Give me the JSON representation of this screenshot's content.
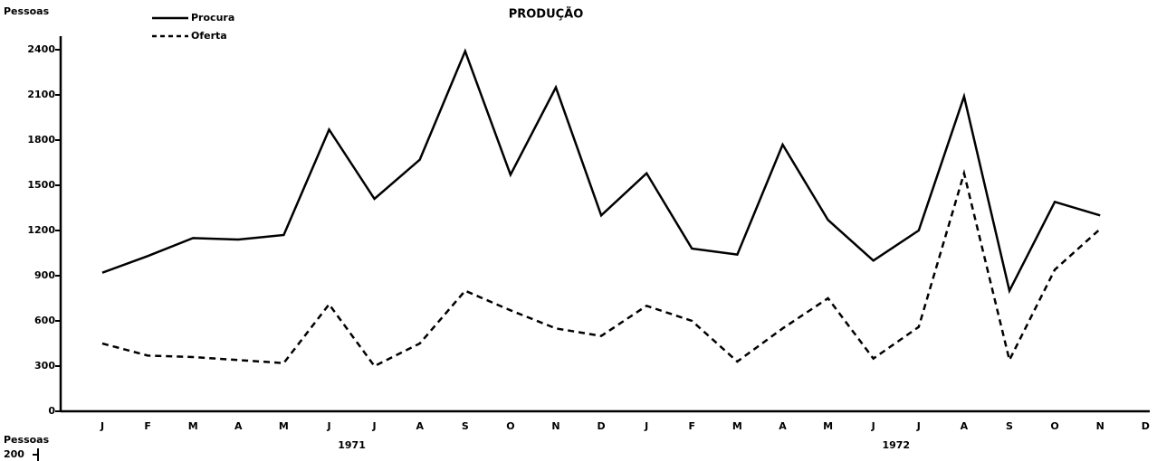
{
  "chart_data": {
    "type": "line",
    "title": "PRODUÇÃO",
    "y_label": "Pessoas",
    "categories": [
      "J",
      "F",
      "M",
      "A",
      "M",
      "J",
      "J",
      "A",
      "S",
      "O",
      "N",
      "D",
      "J",
      "F",
      "M",
      "A",
      "M",
      "J",
      "J",
      "A",
      "S",
      "O",
      "N",
      "D"
    ],
    "year_labels": [
      "1971",
      "1972"
    ],
    "series": [
      {
        "name": "Procura",
        "color": "#000000",
        "dash": "solid",
        "values": [
          920,
          1030,
          1150,
          1140,
          1170,
          1870,
          1410,
          1670,
          2390,
          1570,
          2150,
          1300,
          1580,
          1080,
          1040,
          1770,
          1270,
          1000,
          1200,
          2090,
          800,
          1390,
          1300,
          null
        ]
      },
      {
        "name": "Oferta",
        "color": "#000000",
        "dash": "dashed",
        "values": [
          450,
          370,
          360,
          340,
          320,
          710,
          300,
          450,
          800,
          670,
          550,
          500,
          700,
          600,
          330,
          550,
          750,
          350,
          560,
          1580,
          340,
          940,
          1210,
          null
        ]
      }
    ],
    "ylim": [
      0,
      2400
    ],
    "yticks": [
      0,
      300,
      600,
      900,
      1200,
      1500,
      1800,
      2100,
      2400
    ],
    "legend": "top-left",
    "annotations": [
      "Pessoas",
      "200"
    ]
  }
}
